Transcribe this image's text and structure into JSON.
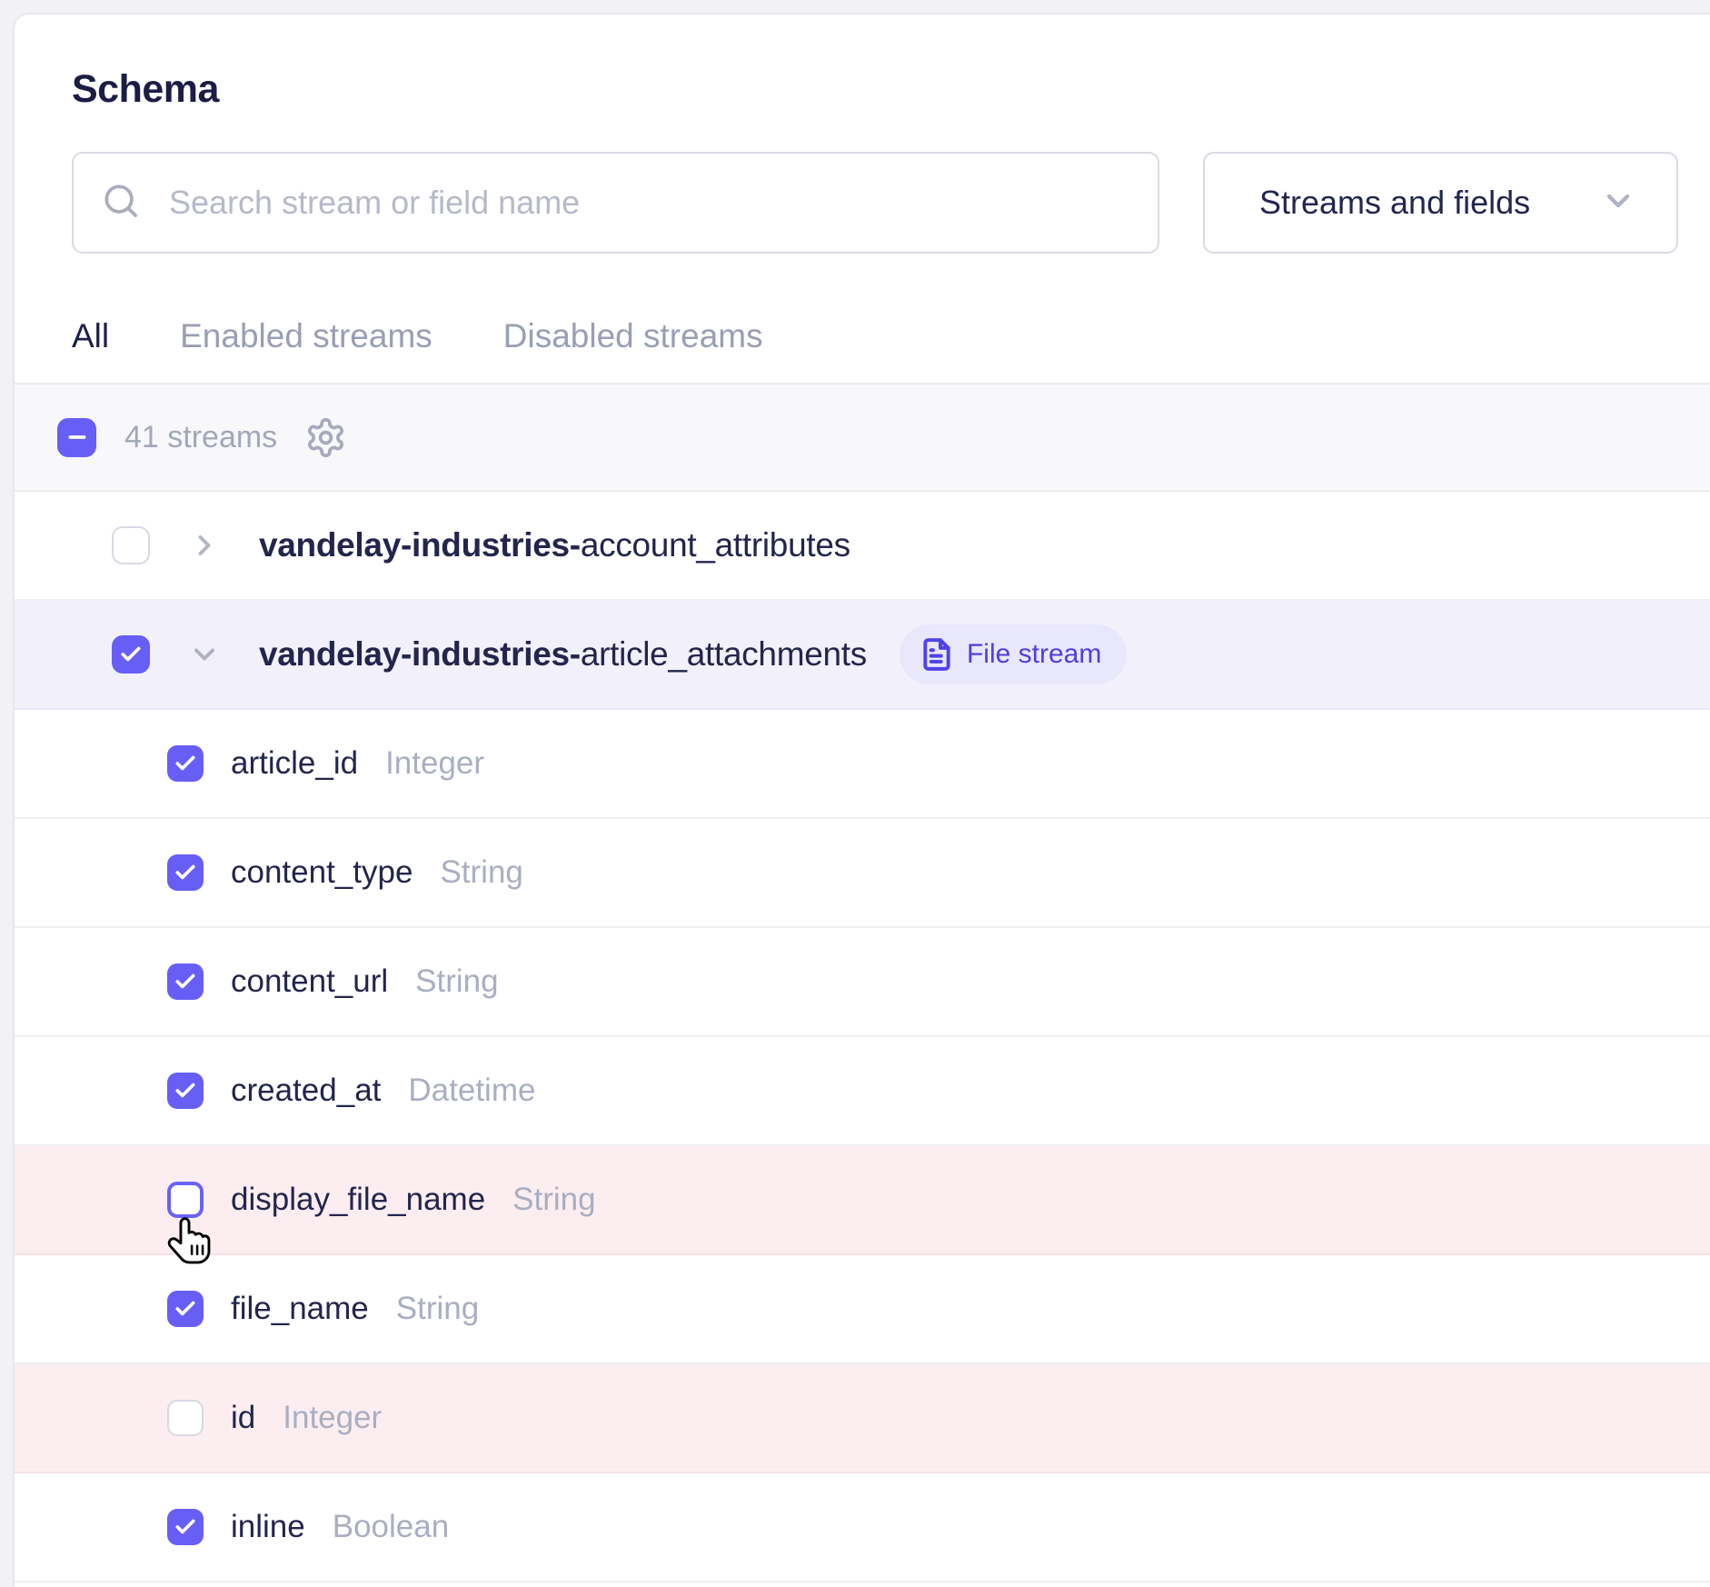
{
  "header": {
    "title": "Schema",
    "search_placeholder": "Search stream or field name",
    "search_value": "",
    "filter_value": "Streams and fields"
  },
  "tabs": [
    {
      "label": "All",
      "active": true
    },
    {
      "label": "Enabled streams",
      "active": false
    },
    {
      "label": "Disabled streams",
      "active": false
    }
  ],
  "toolbar": {
    "checkbox_state": "indeterminate",
    "streams_count_label": "41 streams",
    "settings_icon": "gear-icon"
  },
  "streams": [
    {
      "prefix": "vandelay-industries-",
      "name": "account_attributes",
      "checked": false,
      "expanded": false,
      "badge": null,
      "highlight": null,
      "fields": []
    },
    {
      "prefix": "vandelay-industries-",
      "name": "article_attachments",
      "checked": true,
      "expanded": true,
      "badge": {
        "label": "File stream",
        "icon": "file-text-icon"
      },
      "highlight": "selected",
      "fields": [
        {
          "name": "article_id",
          "type": "Integer",
          "checked": true,
          "highlight": null,
          "hovered": false
        },
        {
          "name": "content_type",
          "type": "String",
          "checked": true,
          "highlight": null,
          "hovered": false
        },
        {
          "name": "content_url",
          "type": "String",
          "checked": true,
          "highlight": null,
          "hovered": false
        },
        {
          "name": "created_at",
          "type": "Datetime",
          "checked": true,
          "highlight": null,
          "hovered": false
        },
        {
          "name": "display_file_name",
          "type": "String",
          "checked": false,
          "highlight": "removed",
          "hovered": true
        },
        {
          "name": "file_name",
          "type": "String",
          "checked": true,
          "highlight": null,
          "hovered": false
        },
        {
          "name": "id",
          "type": "Integer",
          "checked": false,
          "highlight": "removed",
          "hovered": false
        },
        {
          "name": "inline",
          "type": "Boolean",
          "checked": true,
          "highlight": null,
          "hovered": false
        }
      ]
    }
  ],
  "colors": {
    "accent": "#675ef5",
    "selected_row": "#f2f1fb",
    "removed_row": "#fceef0",
    "badge_bg": "#e9e7fc",
    "badge_text": "#4b3fe2",
    "tab_active": "#1c1e4a",
    "muted_text": "#a2a7ba"
  }
}
